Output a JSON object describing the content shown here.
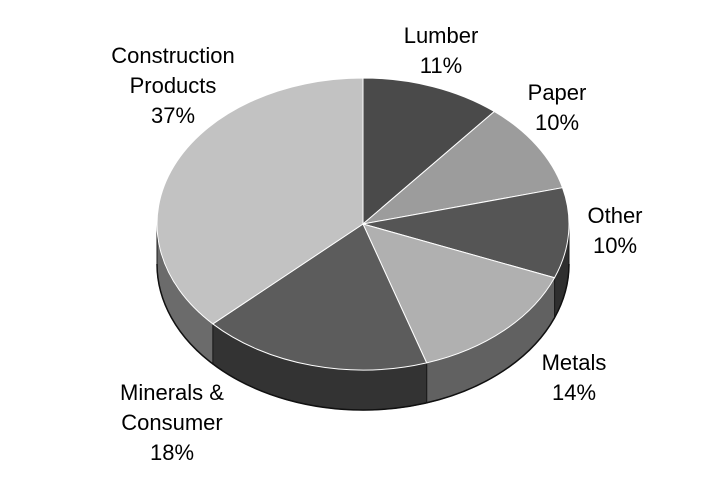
{
  "chart_data": {
    "type": "pie",
    "style": "3d",
    "title": "",
    "slices": [
      {
        "label_lines": [
          "Lumber",
          "11%"
        ],
        "name": "Lumber",
        "value": 11,
        "color": "#4a4a4a"
      },
      {
        "label_lines": [
          "Paper",
          "10%"
        ],
        "name": "Paper",
        "value": 10,
        "color": "#9c9c9c"
      },
      {
        "label_lines": [
          "Other",
          "10%"
        ],
        "name": "Other",
        "value": 10,
        "color": "#555555"
      },
      {
        "label_lines": [
          "Metals",
          "14%"
        ],
        "name": "Metals",
        "value": 14,
        "color": "#b0b0b0"
      },
      {
        "label_lines": [
          "Minerals &",
          "Consumer",
          "18%"
        ],
        "name": "Minerals & Consumer",
        "value": 18,
        "color": "#5c5c5c"
      },
      {
        "label_lines": [
          "Construction",
          "Products",
          "37%"
        ],
        "name": "Construction Products",
        "value": 37,
        "color": "#c2c2c2"
      }
    ]
  }
}
